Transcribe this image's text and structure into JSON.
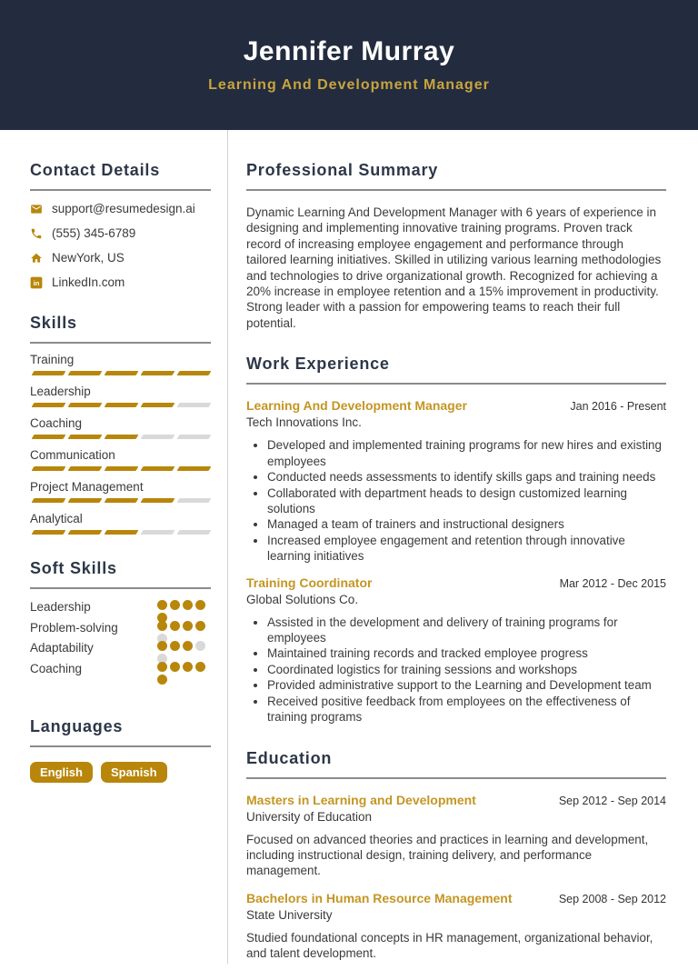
{
  "colors": {
    "navy": "#232c3e",
    "gold": "#b8860b",
    "gold_header": "#c9a43e",
    "gold_title": "#c49523",
    "heading": "#2d3748",
    "empty": "#d9d9d9"
  },
  "header": {
    "name": "Jennifer Murray",
    "title": "Learning And Development Manager"
  },
  "sidebar": {
    "contact": {
      "heading": "Contact Details",
      "items": [
        {
          "icon": "email-icon",
          "text": "support@resumedesign.ai",
          "interactable": true
        },
        {
          "icon": "phone-icon",
          "text": "(555) 345-6789",
          "interactable": false
        },
        {
          "icon": "home-icon",
          "text": "NewYork, US",
          "interactable": false
        },
        {
          "icon": "linkedin-icon",
          "text": "LinkedIn.com",
          "interactable": true
        }
      ]
    },
    "skills": {
      "heading": "Skills",
      "max_segments": 5,
      "items": [
        {
          "label": "Training",
          "level": 5
        },
        {
          "label": "Leadership",
          "level": 4
        },
        {
          "label": "Coaching",
          "level": 3
        },
        {
          "label": "Communication",
          "level": 5
        },
        {
          "label": "Project Management",
          "level": 4
        },
        {
          "label": "Analytical",
          "level": 3
        }
      ]
    },
    "soft_skills": {
      "heading": "Soft Skills",
      "max_dots": 5,
      "items": [
        {
          "label": "Leadership",
          "level": 5
        },
        {
          "label": "Problem-solving",
          "level": 4
        },
        {
          "label": "Adaptability",
          "level": 3
        },
        {
          "label": "Coaching",
          "level": 5
        }
      ]
    },
    "languages": {
      "heading": "Languages",
      "items": [
        "English",
        "Spanish"
      ]
    }
  },
  "main": {
    "summary": {
      "heading": "Professional Summary",
      "text": "Dynamic Learning And Development Manager with 6 years of experience in designing and implementing innovative training programs. Proven track record of increasing employee engagement and performance through tailored learning initiatives. Skilled in utilizing various learning methodologies and technologies to drive organizational growth. Recognized for achieving a 20% increase in employee retention and a 15% improvement in productivity. Strong leader with a passion for empowering teams to reach their full potential."
    },
    "experience": {
      "heading": "Work Experience",
      "jobs": [
        {
          "title": "Learning And Development Manager",
          "company": "Tech Innovations Inc.",
          "dates": "Jan 2016 - Present",
          "bullets": [
            "Developed and implemented training programs for new hires and existing employees",
            "Conducted needs assessments to identify skills gaps and training needs",
            "Collaborated with department heads to design customized learning solutions",
            "Managed a team of trainers and instructional designers",
            "Increased employee engagement and retention through innovative learning initiatives"
          ]
        },
        {
          "title": "Training Coordinator",
          "company": "Global Solutions Co.",
          "dates": "Mar 2012 - Dec 2015",
          "bullets": [
            "Assisted in the development and delivery of training programs for employees",
            "Maintained training records and tracked employee progress",
            "Coordinated logistics for training sessions and workshops",
            "Provided administrative support to the Learning and Development team",
            "Received positive feedback from employees on the effectiveness of training programs"
          ]
        }
      ]
    },
    "education": {
      "heading": "Education",
      "entries": [
        {
          "degree": "Masters in Learning and Development",
          "school": "University of Education",
          "dates": "Sep 2012 - Sep 2014",
          "description": "Focused on advanced theories and practices in learning and development, including instructional design, training delivery, and performance management."
        },
        {
          "degree": "Bachelors in Human Resource Management",
          "school": "State University",
          "dates": "Sep 2008 - Sep 2012",
          "description": "Studied foundational concepts in HR management, organizational behavior, and talent development."
        }
      ]
    }
  }
}
